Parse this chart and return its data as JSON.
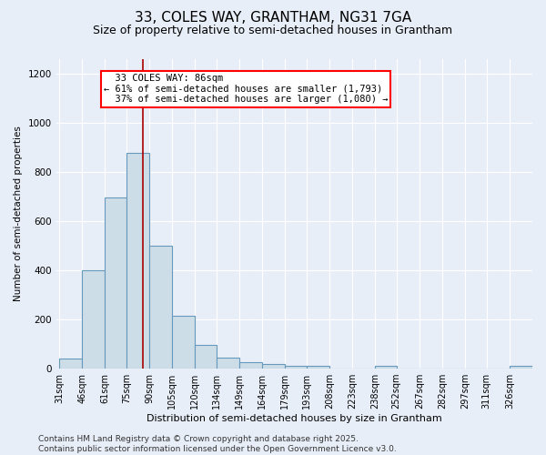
{
  "title": "33, COLES WAY, GRANTHAM, NG31 7GA",
  "subtitle": "Size of property relative to semi-detached houses in Grantham",
  "xlabel": "Distribution of semi-detached houses by size in Grantham",
  "ylabel": "Number of semi-detached properties",
  "bin_edges": [
    31,
    46,
    61,
    75,
    90,
    105,
    120,
    134,
    149,
    164,
    179,
    193,
    208,
    223,
    238,
    252,
    267,
    282,
    297,
    311,
    326
  ],
  "bar_heights": [
    40,
    400,
    695,
    880,
    500,
    215,
    95,
    45,
    25,
    20,
    10,
    10,
    0,
    0,
    10,
    0,
    0,
    0,
    0,
    0,
    10
  ],
  "bar_color": "#ccdde8",
  "bar_edge_color": "#6699bb",
  "bar_edge_width": 0.8,
  "bg_color": "#e8eef8",
  "grid_color": "#ffffff",
  "property_line_x": 86,
  "property_label": "33 COLES WAY: 86sqm",
  "pct_smaller": "61% of semi-detached houses are smaller (1,793)",
  "pct_larger": "37% of semi-detached houses are larger (1,080)",
  "annotation_box_color": "white",
  "annotation_box_edge_color": "red",
  "vertical_line_color": "#aa0000",
  "ylim": [
    0,
    1260
  ],
  "yticks": [
    0,
    200,
    400,
    600,
    800,
    1000,
    1200
  ],
  "footer_line1": "Contains HM Land Registry data © Crown copyright and database right 2025.",
  "footer_line2": "Contains public sector information licensed under the Open Government Licence v3.0.",
  "title_fontsize": 11,
  "subtitle_fontsize": 9,
  "ylabel_fontsize": 7.5,
  "xlabel_fontsize": 8,
  "tick_label_fontsize": 7,
  "ytick_fontsize": 7.5,
  "footer_fontsize": 6.5,
  "ann_fontsize": 7.5
}
